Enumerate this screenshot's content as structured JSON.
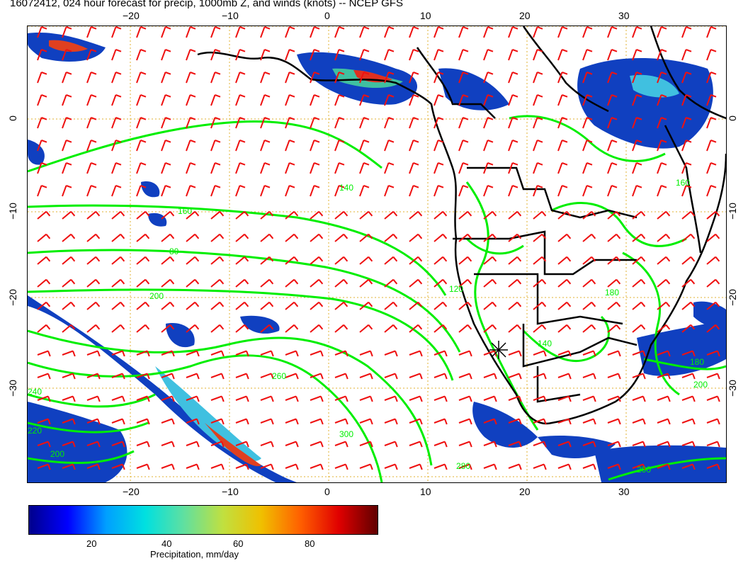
{
  "title": "16072412, 024 hour forecast for precip, 1000mb Z, and winds (knots) -- NCEP GFS",
  "map": {
    "region": "Southern Africa and South Atlantic",
    "lon_range": [
      -30,
      40
    ],
    "lat_range": [
      -40,
      10
    ],
    "colors": {
      "coast_border": "#000000",
      "height_contour": "#00ee00",
      "wind_barb": "#ee1111",
      "grid": "#e0b030"
    },
    "lon_ticks_top": [
      "−20",
      "−10",
      "0",
      "10",
      "20",
      "30"
    ],
    "lon_ticks_bottom": [
      "−20",
      "−10",
      "0",
      "10",
      "20",
      "30"
    ],
    "lat_ticks_left": [
      "0",
      "−10",
      "−20",
      "−30"
    ],
    "lat_ticks_right": [
      "0",
      "−10",
      "−20",
      "−30"
    ],
    "contour_labels": [
      "160",
      "140",
      "80",
      "200",
      "120",
      "260",
      "240",
      "220",
      "200",
      "300",
      "280",
      "140",
      "180",
      "200",
      "200",
      "180",
      "160"
    ],
    "marker_icon": "asterisk-marker-icon"
  },
  "colorbar": {
    "title": "Precipitation, mm/day",
    "ticks": [
      "20",
      "40",
      "60",
      "80"
    ],
    "colors": [
      "#00008b",
      "#0000ff",
      "#00a0ff",
      "#00e0e0",
      "#60e0a0",
      "#c0e040",
      "#f0c000",
      "#ff6000",
      "#e00000",
      "#600000"
    ]
  }
}
